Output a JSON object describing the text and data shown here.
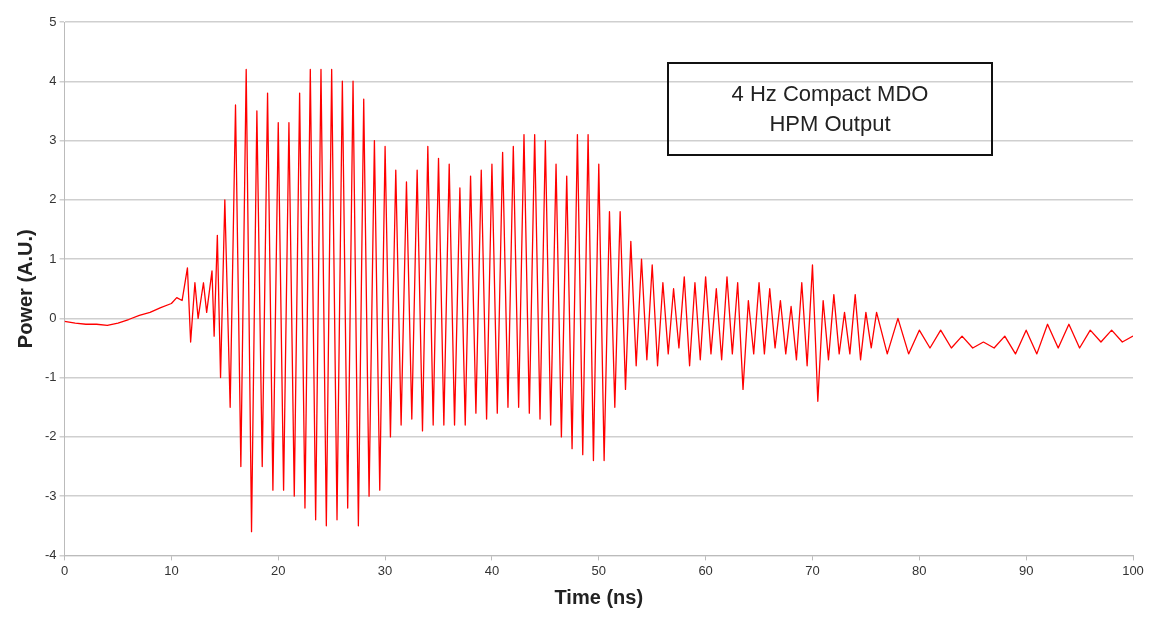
{
  "chart_data": {
    "type": "line",
    "title": "4 Hz Compact MDO\nHPM Output",
    "xlabel": "Time (ns)",
    "ylabel": "Power (A.U.)",
    "xlim": [
      0,
      100
    ],
    "xticks": [
      0,
      10,
      20,
      30,
      40,
      50,
      60,
      70,
      80,
      90,
      100
    ],
    "ylim": [
      -4,
      5
    ],
    "yticks": [
      -4,
      -3,
      -2,
      -1,
      0,
      1,
      2,
      3,
      4,
      5
    ],
    "grid": "y",
    "legend": false,
    "marker": "none",
    "line_style": "solid",
    "series": [
      {
        "color": "#ff0000",
        "x": [
          0,
          1,
          2,
          3,
          4,
          5,
          6,
          7,
          8,
          9,
          10,
          10.5,
          11,
          11.5,
          11.8,
          12.2,
          12.5,
          13,
          13.3,
          13.8,
          14,
          14.3,
          14.6,
          15,
          15.5,
          16,
          16.5,
          17,
          17.5,
          18,
          18.5,
          19,
          19.5,
          20,
          20.5,
          21,
          21.5,
          22,
          22.5,
          23,
          23.5,
          24,
          24.5,
          25,
          25.5,
          26,
          26.5,
          27,
          27.5,
          28,
          28.5,
          29,
          29.5,
          30,
          30.5,
          31,
          31.5,
          32,
          32.5,
          33,
          33.5,
          34,
          34.5,
          35,
          35.5,
          36,
          36.5,
          37,
          37.5,
          38,
          38.5,
          39,
          39.5,
          40,
          40.5,
          41,
          41.5,
          42,
          42.5,
          43,
          43.5,
          44,
          44.5,
          45,
          45.5,
          46,
          46.5,
          47,
          47.5,
          48,
          48.5,
          49,
          49.5,
          50,
          50.5,
          51,
          51.5,
          52,
          52.5,
          53,
          53.5,
          54,
          54.5,
          55,
          55.5,
          56,
          56.5,
          57,
          57.5,
          58,
          58.5,
          59,
          59.5,
          60,
          60.5,
          61,
          61.5,
          62,
          62.5,
          63,
          63.5,
          64,
          64.5,
          65,
          65.5,
          66,
          66.5,
          67,
          67.5,
          68,
          68.5,
          69,
          69.5,
          70,
          70.5,
          71,
          71.5,
          72,
          72.5,
          73,
          73.5,
          74,
          74.5,
          75,
          75.5,
          76,
          77,
          78,
          79,
          80,
          81,
          82,
          83,
          84,
          85,
          86,
          87,
          88,
          89,
          90,
          91,
          92,
          93,
          94,
          95,
          96,
          97,
          98,
          99,
          100
        ],
        "values": [
          -0.05,
          -0.08,
          -0.1,
          -0.1,
          -0.12,
          -0.08,
          -0.02,
          0.05,
          0.1,
          0.18,
          0.25,
          0.35,
          0.3,
          0.85,
          -0.4,
          0.6,
          0.0,
          0.6,
          0.1,
          0.8,
          -0.3,
          1.4,
          -1.0,
          2.0,
          -1.5,
          3.6,
          -2.5,
          4.2,
          -3.6,
          3.5,
          -2.5,
          3.8,
          -2.9,
          3.3,
          -2.9,
          3.3,
          -3.0,
          3.8,
          -3.2,
          4.2,
          -3.4,
          4.2,
          -3.5,
          4.2,
          -3.4,
          4.0,
          -3.2,
          4.0,
          -3.5,
          3.7,
          -3.0,
          3.0,
          -2.9,
          2.9,
          -2.0,
          2.5,
          -1.8,
          2.3,
          -1.7,
          2.5,
          -1.9,
          2.9,
          -1.8,
          2.7,
          -1.8,
          2.6,
          -1.8,
          2.2,
          -1.8,
          2.4,
          -1.6,
          2.5,
          -1.7,
          2.6,
          -1.6,
          2.8,
          -1.5,
          2.9,
          -1.5,
          3.1,
          -1.6,
          3.1,
          -1.7,
          3.0,
          -1.8,
          2.6,
          -2.0,
          2.4,
          -2.2,
          3.1,
          -2.3,
          3.1,
          -2.4,
          2.6,
          -2.4,
          1.8,
          -1.5,
          1.8,
          -1.2,
          1.3,
          -0.8,
          1.0,
          -0.7,
          0.9,
          -0.8,
          0.6,
          -0.6,
          0.5,
          -0.5,
          0.7,
          -0.8,
          0.6,
          -0.7,
          0.7,
          -0.6,
          0.5,
          -0.7,
          0.7,
          -0.6,
          0.6,
          -1.2,
          0.3,
          -0.6,
          0.6,
          -0.6,
          0.5,
          -0.5,
          0.3,
          -0.6,
          0.2,
          -0.7,
          0.6,
          -0.8,
          0.9,
          -1.4,
          0.3,
          -0.7,
          0.4,
          -0.6,
          0.1,
          -0.6,
          0.4,
          -0.7,
          0.1,
          -0.5,
          0.1,
          -0.6,
          0.0,
          -0.6,
          -0.2,
          -0.5,
          -0.2,
          -0.5,
          -0.3,
          -0.5,
          -0.4,
          -0.5,
          -0.3,
          -0.6,
          -0.2,
          -0.6,
          -0.1,
          -0.5,
          -0.1,
          -0.5,
          -0.2,
          -0.4,
          -0.2,
          -0.4,
          -0.3
        ]
      }
    ]
  }
}
